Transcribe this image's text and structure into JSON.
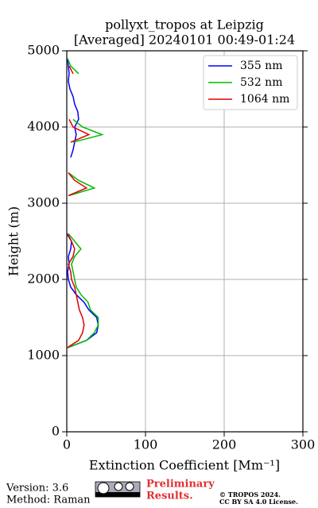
{
  "chart_data": {
    "type": "line",
    "title": "pollyxt_tropos at Leipzig",
    "subtitle": "[Averaged] 20240101 00:49-01:24",
    "xlabel": "Extinction Coefficient [Mm⁻¹]",
    "ylabel": "Height (m)",
    "xlim": [
      0,
      300
    ],
    "xticks": [
      0,
      100,
      200,
      300
    ],
    "ylim": [
      0,
      5000
    ],
    "yticks": [
      0,
      1000,
      2000,
      3000,
      4000,
      5000
    ],
    "grid": true,
    "legend": "upper right",
    "y": [
      1100,
      1200,
      1300,
      1400,
      1500,
      1600,
      1700,
      1800,
      1900,
      2000,
      2100,
      2200,
      2300,
      2400,
      2500,
      2600,
      2700,
      2800,
      2900,
      3000,
      3100,
      3200,
      3300,
      3400,
      3500,
      3600,
      3700,
      3800,
      3900,
      4000,
      4100,
      4200,
      4300,
      4400,
      4500,
      4600,
      4700,
      4800,
      4900
    ],
    "series": [
      {
        "name": "355 nm",
        "color": "#0000ff",
        "values": [
          0,
          25,
          38,
          40,
          38,
          28,
          22,
          12,
          5,
          2,
          1,
          3,
          2,
          5,
          6,
          0,
          null,
          null,
          2,
          null,
          null,
          null,
          null,
          null,
          null,
          5,
          8,
          10,
          12,
          10,
          15,
          14,
          10,
          8,
          4,
          2,
          3,
          2,
          1
        ]
      },
      {
        "name": "532 nm",
        "color": "#00bb00",
        "values": [
          0,
          25,
          35,
          40,
          40,
          30,
          27,
          18,
          12,
          10,
          8,
          6,
          10,
          18,
          10,
          2,
          null,
          null,
          null,
          null,
          3,
          35,
          15,
          2,
          null,
          null,
          null,
          8,
          45,
          20,
          8,
          null,
          null,
          null,
          null,
          null,
          15,
          5,
          1
        ]
      },
      {
        "name": "1064 nm",
        "color": "#dd0000",
        "values": [
          0,
          15,
          20,
          22,
          20,
          16,
          14,
          12,
          10,
          6,
          5,
          2,
          8,
          10,
          6,
          1,
          null,
          null,
          null,
          null,
          2,
          25,
          10,
          2,
          null,
          null,
          null,
          5,
          28,
          8,
          3,
          null,
          null,
          null,
          null,
          null,
          8,
          3,
          null
        ]
      }
    ]
  },
  "footer": {
    "version": "Version: 3.6",
    "method": "Method: Raman",
    "preliminary": "Preliminary",
    "results": "Results.",
    "copyright": "© TROPOS 2024.",
    "license": "CC BY SA 4.0 License."
  }
}
